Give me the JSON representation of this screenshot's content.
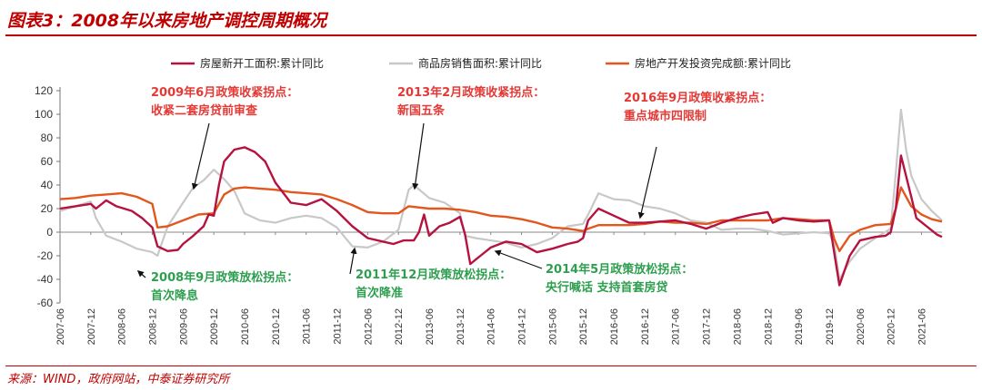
{
  "title": "图表3：2008年以来房地产调控周期概况",
  "source": "来源：WIND，政府网站，中泰证券研究所",
  "chart_data": {
    "type": "line",
    "ylim": [
      -60,
      120
    ],
    "yticks": [
      -60,
      -40,
      -20,
      0,
      20,
      40,
      60,
      80,
      100,
      120
    ],
    "x_start": "2007-06",
    "x_end": "2021-10",
    "xticks": [
      "2007-06",
      "2007-12",
      "2008-06",
      "2008-12",
      "2009-06",
      "2009-12",
      "2010-06",
      "2010-12",
      "2011-06",
      "2011-12",
      "2012-06",
      "2012-12",
      "2013-06",
      "2013-12",
      "2014-06",
      "2014-12",
      "2015-06",
      "2015-12",
      "2016-06",
      "2016-12",
      "2017-06",
      "2017-12",
      "2018-06",
      "2018-12",
      "2019-06",
      "2019-12",
      "2020-06",
      "2020-12",
      "2021-06"
    ],
    "legend_position": "top",
    "series": [
      {
        "name": "房屋新开工面积:累计同比",
        "color": "#b5123f",
        "points": [
          [
            "2007-06",
            20
          ],
          [
            "2007-09",
            22
          ],
          [
            "2007-12",
            24
          ],
          [
            "2008-01",
            20
          ],
          [
            "2008-03",
            27
          ],
          [
            "2008-05",
            22
          ],
          [
            "2008-08",
            18
          ],
          [
            "2008-10",
            12
          ],
          [
            "2008-12",
            4
          ],
          [
            "2009-01",
            -12
          ],
          [
            "2009-03",
            -16
          ],
          [
            "2009-05",
            -15
          ],
          [
            "2009-06",
            -10
          ],
          [
            "2009-08",
            -3
          ],
          [
            "2009-10",
            5
          ],
          [
            "2009-11",
            15
          ],
          [
            "2009-12",
            14
          ],
          [
            "2010-01",
            40
          ],
          [
            "2010-02",
            60
          ],
          [
            "2010-04",
            70
          ],
          [
            "2010-06",
            72
          ],
          [
            "2010-08",
            68
          ],
          [
            "2010-10",
            60
          ],
          [
            "2010-12",
            42
          ],
          [
            "2011-03",
            25
          ],
          [
            "2011-06",
            23
          ],
          [
            "2011-09",
            28
          ],
          [
            "2011-12",
            18
          ],
          [
            "2012-03",
            5
          ],
          [
            "2012-06",
            -5
          ],
          [
            "2012-09",
            -8
          ],
          [
            "2012-11",
            -10
          ],
          [
            "2013-01",
            -7
          ],
          [
            "2013-03",
            -7
          ],
          [
            "2013-04",
            0
          ],
          [
            "2013-05",
            15
          ],
          [
            "2013-06",
            -3
          ],
          [
            "2013-08",
            5
          ],
          [
            "2013-10",
            8
          ],
          [
            "2013-12",
            13
          ],
          [
            "2014-01",
            -2
          ],
          [
            "2014-02",
            -27
          ],
          [
            "2014-04",
            -20
          ],
          [
            "2014-06",
            -13
          ],
          [
            "2014-09",
            -8
          ],
          [
            "2014-12",
            -10
          ],
          [
            "2015-03",
            -17
          ],
          [
            "2015-06",
            -14
          ],
          [
            "2015-09",
            -10
          ],
          [
            "2015-11",
            -8
          ],
          [
            "2015-12",
            -5
          ],
          [
            "2016-01",
            10
          ],
          [
            "2016-03",
            20
          ],
          [
            "2016-06",
            14
          ],
          [
            "2016-09",
            8
          ],
          [
            "2016-12",
            8
          ],
          [
            "2017-03",
            9
          ],
          [
            "2017-06",
            10
          ],
          [
            "2017-09",
            7
          ],
          [
            "2017-12",
            3
          ],
          [
            "2018-03",
            8
          ],
          [
            "2018-06",
            12
          ],
          [
            "2018-09",
            15
          ],
          [
            "2018-12",
            17
          ],
          [
            "2019-01",
            8
          ],
          [
            "2019-03",
            12
          ],
          [
            "2019-06",
            10
          ],
          [
            "2019-09",
            9
          ],
          [
            "2019-12",
            10
          ],
          [
            "2020-01",
            -18
          ],
          [
            "2020-02",
            -45
          ],
          [
            "2020-04",
            -20
          ],
          [
            "2020-06",
            -7
          ],
          [
            "2020-09",
            -4
          ],
          [
            "2020-11",
            -3
          ],
          [
            "2020-12",
            0
          ],
          [
            "2021-01",
            20
          ],
          [
            "2021-02",
            65
          ],
          [
            "2021-04",
            30
          ],
          [
            "2021-05",
            12
          ],
          [
            "2021-07",
            5
          ],
          [
            "2021-09",
            -2
          ],
          [
            "2021-10",
            -4
          ]
        ]
      },
      {
        "name": "商品房销售面积:累计同比",
        "color": "#c8c8c8",
        "points": [
          [
            "2007-06",
            18
          ],
          [
            "2007-09",
            22
          ],
          [
            "2007-12",
            26
          ],
          [
            "2008-01",
            12
          ],
          [
            "2008-03",
            -3
          ],
          [
            "2008-06",
            -8
          ],
          [
            "2008-09",
            -14
          ],
          [
            "2008-12",
            -17
          ],
          [
            "2009-01",
            -20
          ],
          [
            "2009-03",
            5
          ],
          [
            "2009-06",
            25
          ],
          [
            "2009-08",
            38
          ],
          [
            "2009-10",
            44
          ],
          [
            "2009-12",
            53
          ],
          [
            "2010-02",
            45
          ],
          [
            "2010-04",
            35
          ],
          [
            "2010-06",
            16
          ],
          [
            "2010-09",
            10
          ],
          [
            "2010-12",
            8
          ],
          [
            "2011-03",
            12
          ],
          [
            "2011-06",
            14
          ],
          [
            "2011-09",
            12
          ],
          [
            "2011-12",
            4
          ],
          [
            "2012-03",
            -12
          ],
          [
            "2012-06",
            -13
          ],
          [
            "2012-09",
            -8
          ],
          [
            "2012-12",
            2
          ],
          [
            "2013-02",
            36
          ],
          [
            "2013-03",
            40
          ],
          [
            "2013-06",
            29
          ],
          [
            "2013-09",
            25
          ],
          [
            "2013-12",
            16
          ],
          [
            "2014-01",
            -3
          ],
          [
            "2014-03",
            -5
          ],
          [
            "2014-06",
            -7
          ],
          [
            "2014-09",
            -9
          ],
          [
            "2014-12",
            -13
          ],
          [
            "2015-03",
            -10
          ],
          [
            "2015-06",
            -5
          ],
          [
            "2015-09",
            5
          ],
          [
            "2015-12",
            7
          ],
          [
            "2016-01",
            15
          ],
          [
            "2016-03",
            33
          ],
          [
            "2016-06",
            28
          ],
          [
            "2016-09",
            27
          ],
          [
            "2016-12",
            22
          ],
          [
            "2017-03",
            20
          ],
          [
            "2017-06",
            16
          ],
          [
            "2017-09",
            10
          ],
          [
            "2017-12",
            8
          ],
          [
            "2018-03",
            2
          ],
          [
            "2018-06",
            3
          ],
          [
            "2018-09",
            3
          ],
          [
            "2018-12",
            1
          ],
          [
            "2019-03",
            -2
          ],
          [
            "2019-06",
            -1
          ],
          [
            "2019-09",
            0
          ],
          [
            "2019-12",
            -1
          ],
          [
            "2020-01",
            -10
          ],
          [
            "2020-02",
            -40
          ],
          [
            "2020-04",
            -25
          ],
          [
            "2020-06",
            -14
          ],
          [
            "2020-09",
            -5
          ],
          [
            "2020-12",
            3
          ],
          [
            "2021-01",
            50
          ],
          [
            "2021-02",
            104
          ],
          [
            "2021-03",
            70
          ],
          [
            "2021-04",
            48
          ],
          [
            "2021-06",
            28
          ],
          [
            "2021-08",
            18
          ],
          [
            "2021-10",
            10
          ]
        ]
      },
      {
        "name": "房地产开发投资完成额:累计同比",
        "color": "#e2571e",
        "points": [
          [
            "2007-06",
            28
          ],
          [
            "2007-09",
            29
          ],
          [
            "2007-12",
            31
          ],
          [
            "2008-03",
            32
          ],
          [
            "2008-06",
            33
          ],
          [
            "2008-09",
            30
          ],
          [
            "2008-12",
            24
          ],
          [
            "2009-01",
            4
          ],
          [
            "2009-03",
            5
          ],
          [
            "2009-06",
            10
          ],
          [
            "2009-09",
            15
          ],
          [
            "2009-12",
            16
          ],
          [
            "2010-02",
            32
          ],
          [
            "2010-04",
            37
          ],
          [
            "2010-06",
            38
          ],
          [
            "2010-09",
            37
          ],
          [
            "2010-12",
            36
          ],
          [
            "2011-03",
            34
          ],
          [
            "2011-06",
            33
          ],
          [
            "2011-09",
            32
          ],
          [
            "2011-12",
            28
          ],
          [
            "2012-03",
            23
          ],
          [
            "2012-06",
            17
          ],
          [
            "2012-09",
            16
          ],
          [
            "2012-12",
            16
          ],
          [
            "2013-02",
            22
          ],
          [
            "2013-06",
            20
          ],
          [
            "2013-09",
            20
          ],
          [
            "2013-12",
            19
          ],
          [
            "2014-03",
            17
          ],
          [
            "2014-06",
            14
          ],
          [
            "2014-09",
            13
          ],
          [
            "2014-12",
            11
          ],
          [
            "2015-03",
            8
          ],
          [
            "2015-06",
            4
          ],
          [
            "2015-09",
            3
          ],
          [
            "2015-12",
            1
          ],
          [
            "2016-01",
            3
          ],
          [
            "2016-03",
            6
          ],
          [
            "2016-06",
            6
          ],
          [
            "2016-09",
            6
          ],
          [
            "2016-12",
            7
          ],
          [
            "2017-03",
            9
          ],
          [
            "2017-06",
            8
          ],
          [
            "2017-09",
            8
          ],
          [
            "2017-12",
            7
          ],
          [
            "2018-03",
            10
          ],
          [
            "2018-06",
            10
          ],
          [
            "2018-09",
            10
          ],
          [
            "2018-12",
            10
          ],
          [
            "2019-03",
            12
          ],
          [
            "2019-06",
            11
          ],
          [
            "2019-09",
            10
          ],
          [
            "2019-12",
            10
          ],
          [
            "2020-01",
            -6
          ],
          [
            "2020-02",
            -16
          ],
          [
            "2020-04",
            -3
          ],
          [
            "2020-06",
            2
          ],
          [
            "2020-09",
            6
          ],
          [
            "2020-12",
            7
          ],
          [
            "2021-01",
            20
          ],
          [
            "2021-02",
            38
          ],
          [
            "2021-04",
            22
          ],
          [
            "2021-06",
            15
          ],
          [
            "2021-08",
            11
          ],
          [
            "2021-10",
            9
          ]
        ]
      }
    ],
    "annotations": [
      {
        "lines": [
          "2009年6月政策收紧拐点：",
          "收紧二套房贷前审查"
        ],
        "color": "#e53935",
        "arrow_from": "2009-10",
        "arrow_to": "2009-06"
      },
      {
        "lines": [
          "2013年2月政策收紧拐点：",
          "新国五条"
        ],
        "color": "#e53935",
        "arrow_from": "2013-04",
        "arrow_to": "2013-02"
      },
      {
        "lines": [
          "2016年9月政策收紧拐点：",
          "重点城市四限制"
        ],
        "color": "#e53935",
        "arrow_from": "2016-11",
        "arrow_to": "2016-09"
      },
      {
        "lines": [
          "2008年9月政策放松拐点：",
          "首次降息"
        ],
        "color": "#2e9e4f",
        "arrow_from": "2008-07",
        "arrow_to": "2008-09"
      },
      {
        "lines": [
          "2011年12月政策放松拐点：",
          "首次降准"
        ],
        "color": "#2e9e4f",
        "arrow_from": "2012-01",
        "arrow_to": "2011-12"
      },
      {
        "lines": [
          "2014年5月政策放松拐点：",
          "央行喊话 支持首套房贷"
        ],
        "color": "#2e9e4f",
        "arrow_from": "2014-12",
        "arrow_to": "2014-05"
      }
    ]
  }
}
